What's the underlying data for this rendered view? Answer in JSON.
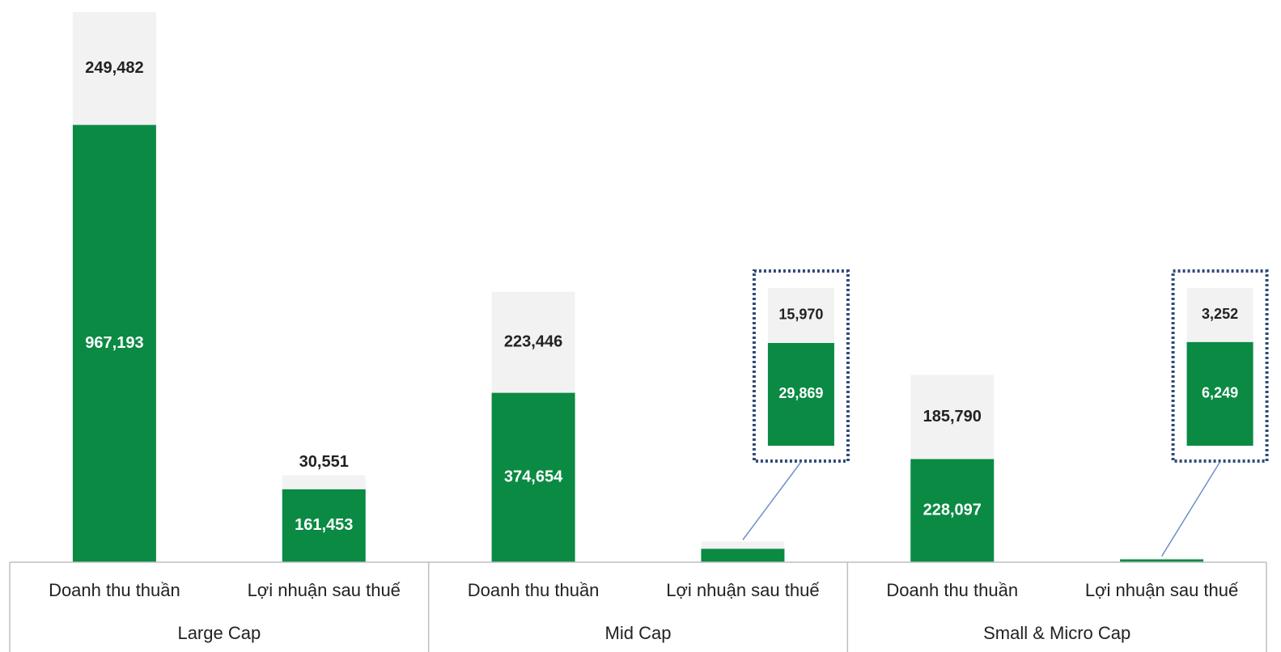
{
  "chart_data": {
    "type": "stacked-bar",
    "categories": [
      "Doanh thu thuần",
      "Lợi nhuận sau thuế",
      "Doanh thu thuần",
      "Lợi nhuận sau thuế",
      "Doanh thu thuần",
      "Lợi nhuận sau thuế"
    ],
    "groups": [
      "Large Cap",
      "Mid Cap",
      "Small & Micro Cap"
    ],
    "series": [
      {
        "color": "#0a8a43",
        "label_color": "#ffffff",
        "values": [
          967193,
          161453,
          374654,
          29869,
          228097,
          6249
        ],
        "value_labels": [
          "967,193",
          "161,453",
          "374,654",
          "29,869",
          "228,097",
          "6,249"
        ]
      },
      {
        "color": "#f2f2f2",
        "label_color": "#222222",
        "values": [
          249482,
          30551,
          223446,
          15970,
          185790,
          3252
        ],
        "value_labels": [
          "249,482",
          "30,551",
          "223,446",
          "15,970",
          "185,790",
          "3,252"
        ]
      }
    ],
    "ylim": [
      0,
      1220000
    ]
  }
}
